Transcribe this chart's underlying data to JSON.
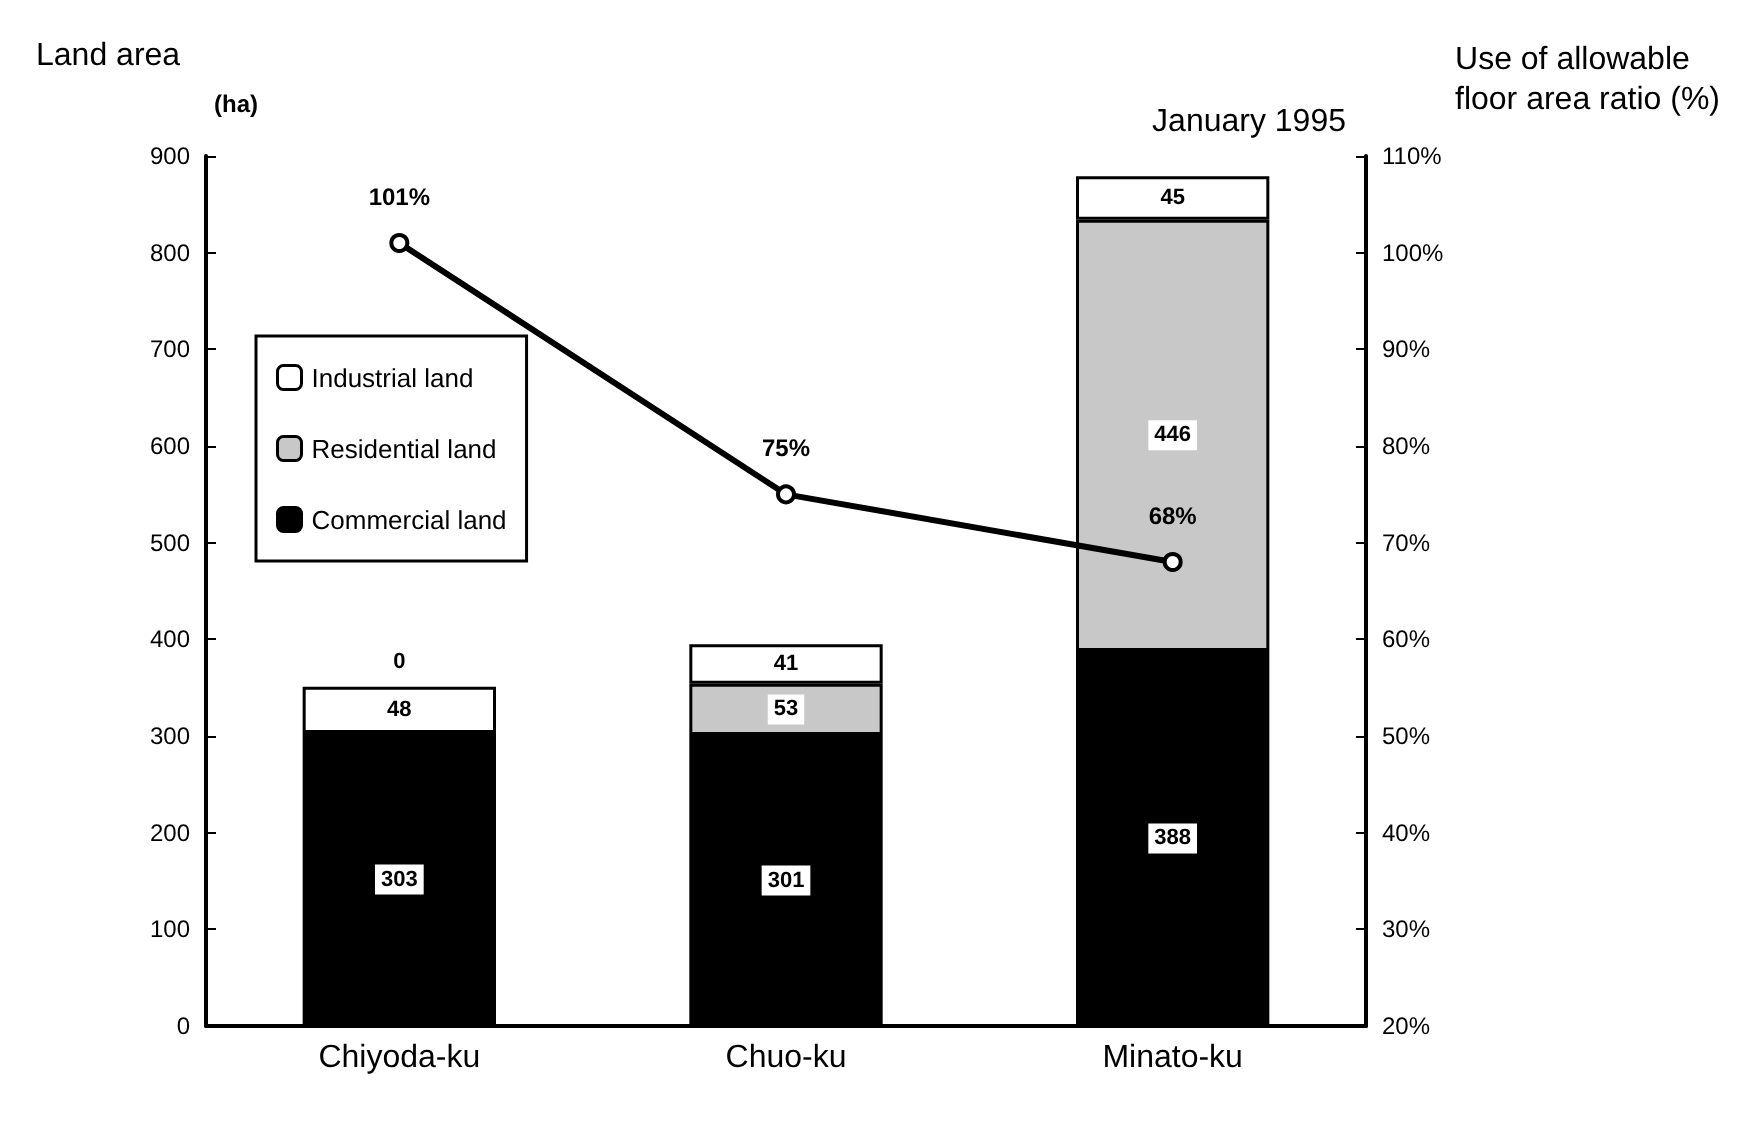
{
  "chart_data": {
    "type": "bar",
    "stacked": true,
    "ylabel": "Land area",
    "y2label": "Use of allowable floor area ratio (%)",
    "annotations": [
      "(ha)",
      "January 1995"
    ],
    "categories": [
      "Chiyoda-ku",
      "Chuo-ku",
      "Minato-ku"
    ],
    "series": [
      {
        "name": "Commercial land",
        "color": "#000000",
        "values": [
          303,
          301,
          388
        ],
        "value_labels": [
          "303",
          "301",
          "388"
        ]
      },
      {
        "name": "Residential land",
        "color": "#c8c8c8",
        "colors": [
          "#ffffff",
          "#c8c8c8",
          "#c8c8c8"
        ],
        "values": [
          48,
          53,
          446
        ],
        "value_labels": [
          "48",
          "53",
          "446"
        ]
      },
      {
        "name": "Industrial land",
        "color": "#ffffff",
        "values": [
          0,
          41,
          45
        ],
        "value_labels": [
          "0",
          "41",
          "45"
        ]
      },
      {
        "type": "line",
        "axis": "y2",
        "color": "#000000",
        "marker": "circle",
        "values": [
          101,
          75,
          68
        ],
        "value_labels": [
          "101%",
          "75%",
          "68%"
        ]
      }
    ],
    "ylim": [
      0,
      900
    ],
    "yticks": [
      0,
      100,
      200,
      300,
      400,
      500,
      600,
      700,
      800,
      900
    ],
    "y2lim": [
      20,
      110
    ],
    "y2ticks": [
      {
        "value": 20,
        "label": "20%"
      },
      {
        "value": 30,
        "label": "30%"
      },
      {
        "value": 40,
        "label": "40%"
      },
      {
        "value": 50,
        "label": "50%"
      },
      {
        "value": 60,
        "label": "60%"
      },
      {
        "value": 70,
        "label": "70%"
      },
      {
        "value": 80,
        "label": "80%"
      },
      {
        "value": 90,
        "label": "90%"
      },
      {
        "value": 100,
        "label": "100%"
      },
      {
        "value": 110,
        "label": "110%"
      }
    ],
    "legend": "top left"
  }
}
